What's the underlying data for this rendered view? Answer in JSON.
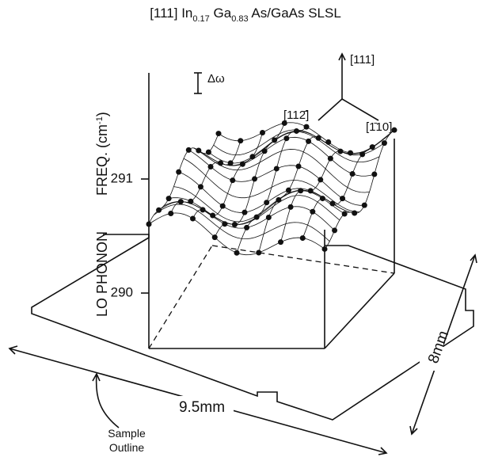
{
  "title": {
    "prefix": "[111] In",
    "sub1": "0.17",
    "mid": " Ga",
    "sub2": "0.83",
    "suffix": " As/GaAs SLSL"
  },
  "axis_label": {
    "part1": "LO PHONON",
    "part2": "FREQ. (cm",
    "sup": "-1",
    "part3": ")"
  },
  "ticks": [
    "291",
    "290"
  ],
  "scale_label": "Δω",
  "directions": [
    "[111]",
    "[112̄]",
    "[1̄10]"
  ],
  "dimensions": {
    "width": "9.5mm",
    "depth": "8mm"
  },
  "sample_outline": [
    "Sample",
    "Outline"
  ]
}
